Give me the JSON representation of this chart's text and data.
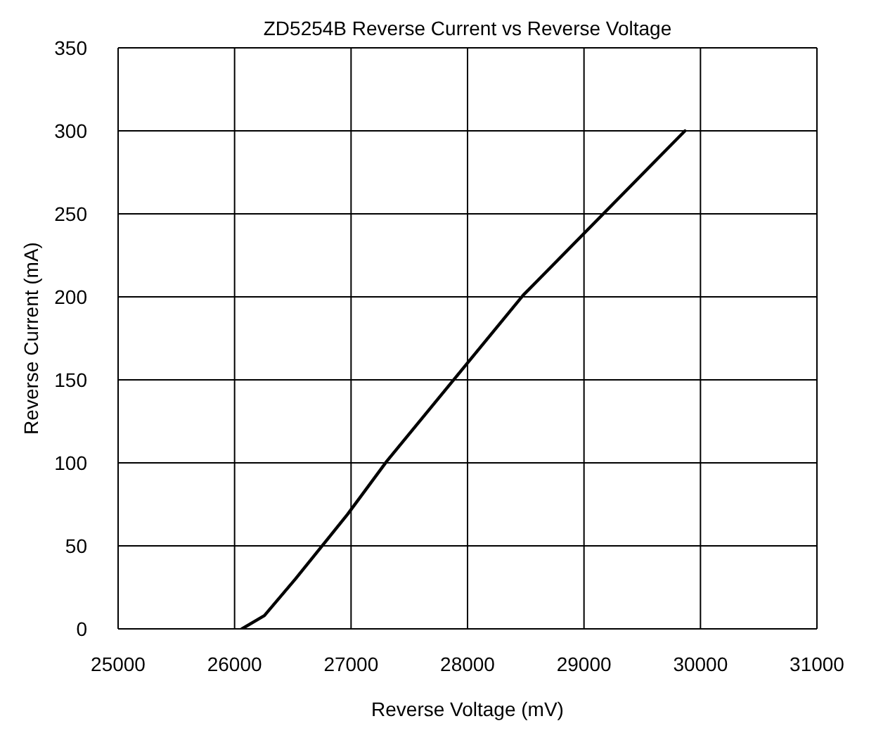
{
  "chart_data": {
    "type": "line",
    "title": "ZD5254B Reverse Current vs Reverse Voltage",
    "xlabel": "Reverse Voltage (mV)",
    "ylabel": "Reverse Current (mA)",
    "x": [
      26063,
      26256,
      26522,
      26970,
      27307,
      28478,
      29867
    ],
    "series": [
      {
        "color": "#000000",
        "values": [
          0,
          8,
          30,
          69,
          101,
          201,
          300
        ]
      }
    ],
    "xlim": [
      25000,
      31000
    ],
    "xticks": [
      25000,
      26000,
      27000,
      28000,
      29000,
      30000,
      31000
    ],
    "ylim": [
      0,
      350
    ],
    "yticks": [
      0,
      50,
      100,
      150,
      200,
      250,
      300,
      350
    ],
    "grid": true,
    "legend": false,
    "marker": "none",
    "line_style": "solid"
  }
}
